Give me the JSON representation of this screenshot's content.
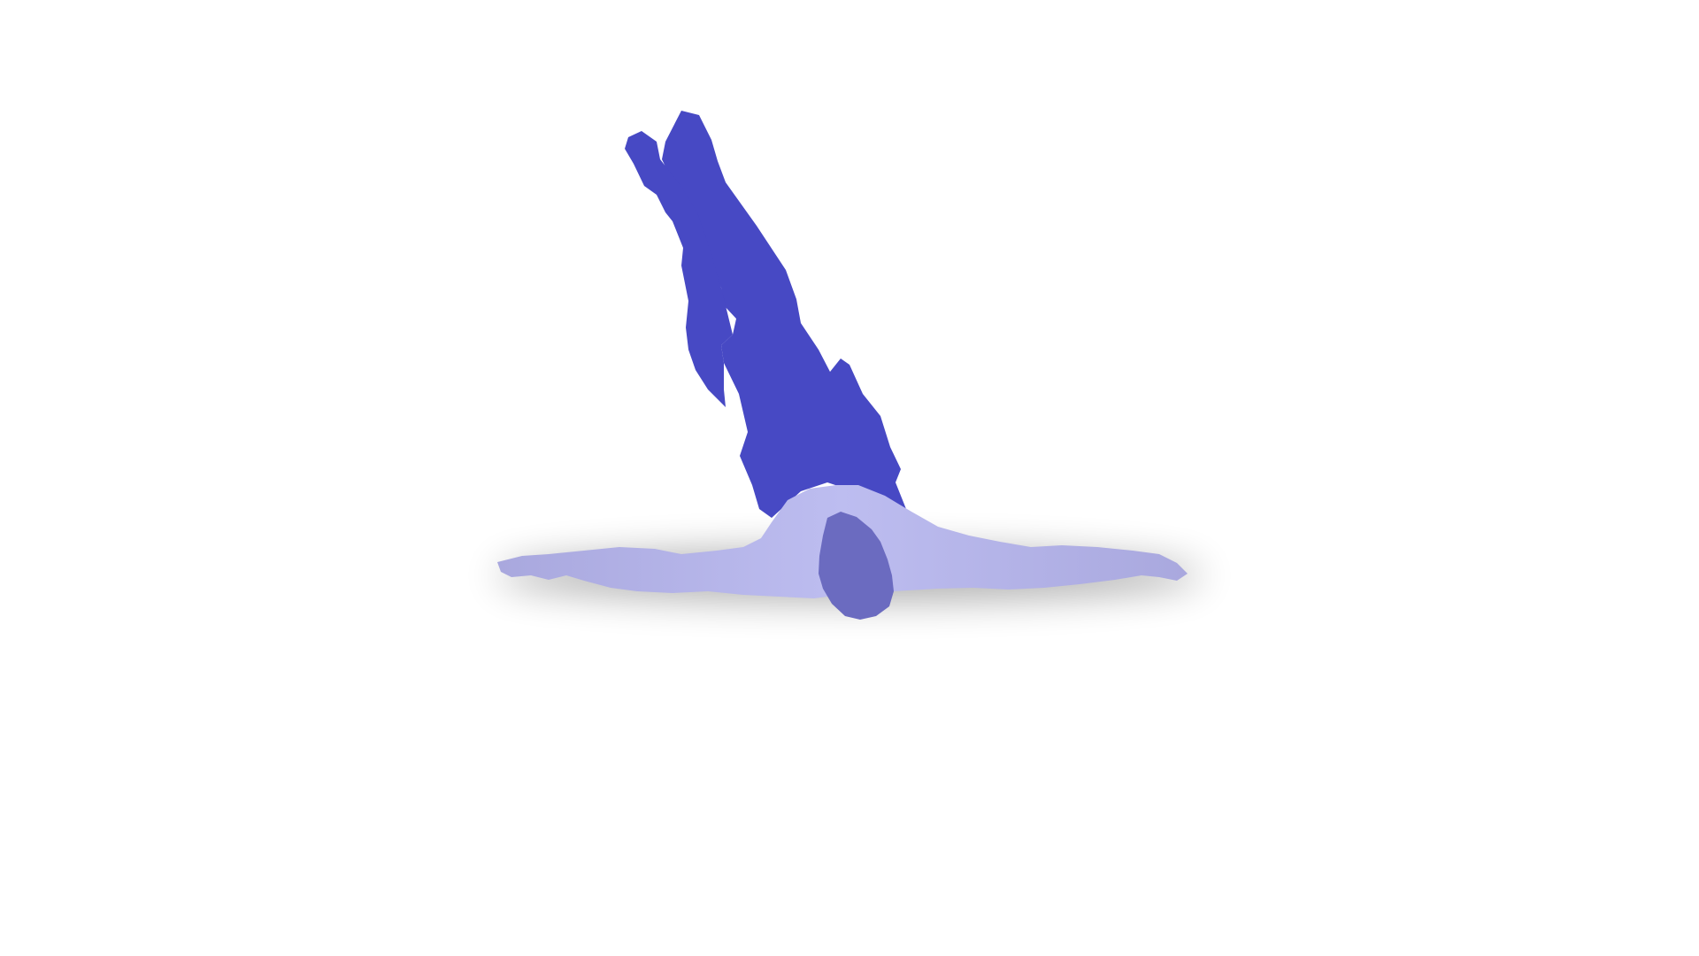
{
  "scene": {
    "background_color": "#ffffff",
    "figure": {
      "lower_body_color": "#4749c4",
      "arm_color": "#a9a8de",
      "arm_highlight_color": "#bdbdf0",
      "head_color": "#6b6bc0",
      "shadow_color": "#000000"
    }
  }
}
